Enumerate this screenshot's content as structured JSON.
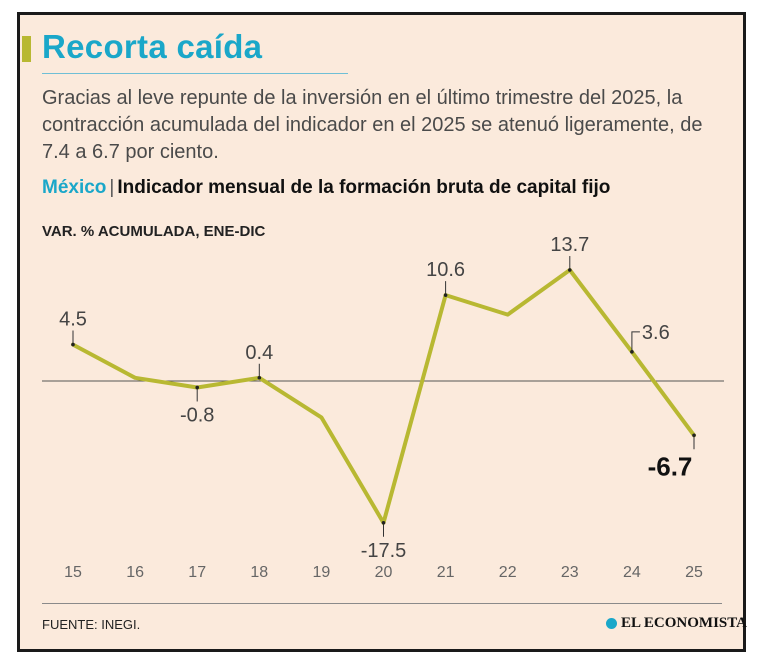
{
  "header": {
    "title": "Recorta caída",
    "description": "Gracias al leve repunte de la inversión en el último trimestre del 2025, la contracción acumulada del indicador en el 2025 se atenuó ligeramente, de 7.4 a 6.7 por ciento.",
    "country": "México",
    "separator": "|",
    "subtitle": "Indicador mensual de la formación bruta de capital fijo",
    "unit_label": "VAR. % ACUMULADA, ENE-DIC"
  },
  "chart_data": {
    "type": "line",
    "title": "Indicador mensual de la formación bruta de capital fijo",
    "ylabel": "VAR. % ACUMULADA, ENE-DIC",
    "xlabel": "",
    "categories": [
      "15",
      "16",
      "17",
      "18",
      "19",
      "20",
      "21",
      "22",
      "23",
      "24",
      "25"
    ],
    "series": [
      {
        "name": "México",
        "values": [
          4.5,
          0.4,
          -0.8,
          0.4,
          -4.5,
          -17.5,
          10.6,
          8.2,
          13.7,
          3.6,
          -6.7
        ]
      }
    ],
    "data_labels": [
      {
        "index": 0,
        "text": "4.5"
      },
      {
        "index": 2,
        "text": "-0.8"
      },
      {
        "index": 3,
        "text": "0.4"
      },
      {
        "index": 5,
        "text": "-17.5"
      },
      {
        "index": 6,
        "text": "10.6"
      },
      {
        "index": 8,
        "text": "13.7"
      },
      {
        "index": 9,
        "text": "3.6"
      },
      {
        "index": 10,
        "text": "-6.7",
        "emphasis": true
      }
    ],
    "ylim": [
      -20,
      16
    ],
    "zero_line": true,
    "line_color": "#b8b832",
    "grid": false
  },
  "footer": {
    "source": "FUENTE: INEGI.",
    "brand": "EL ECONOMISTA"
  }
}
